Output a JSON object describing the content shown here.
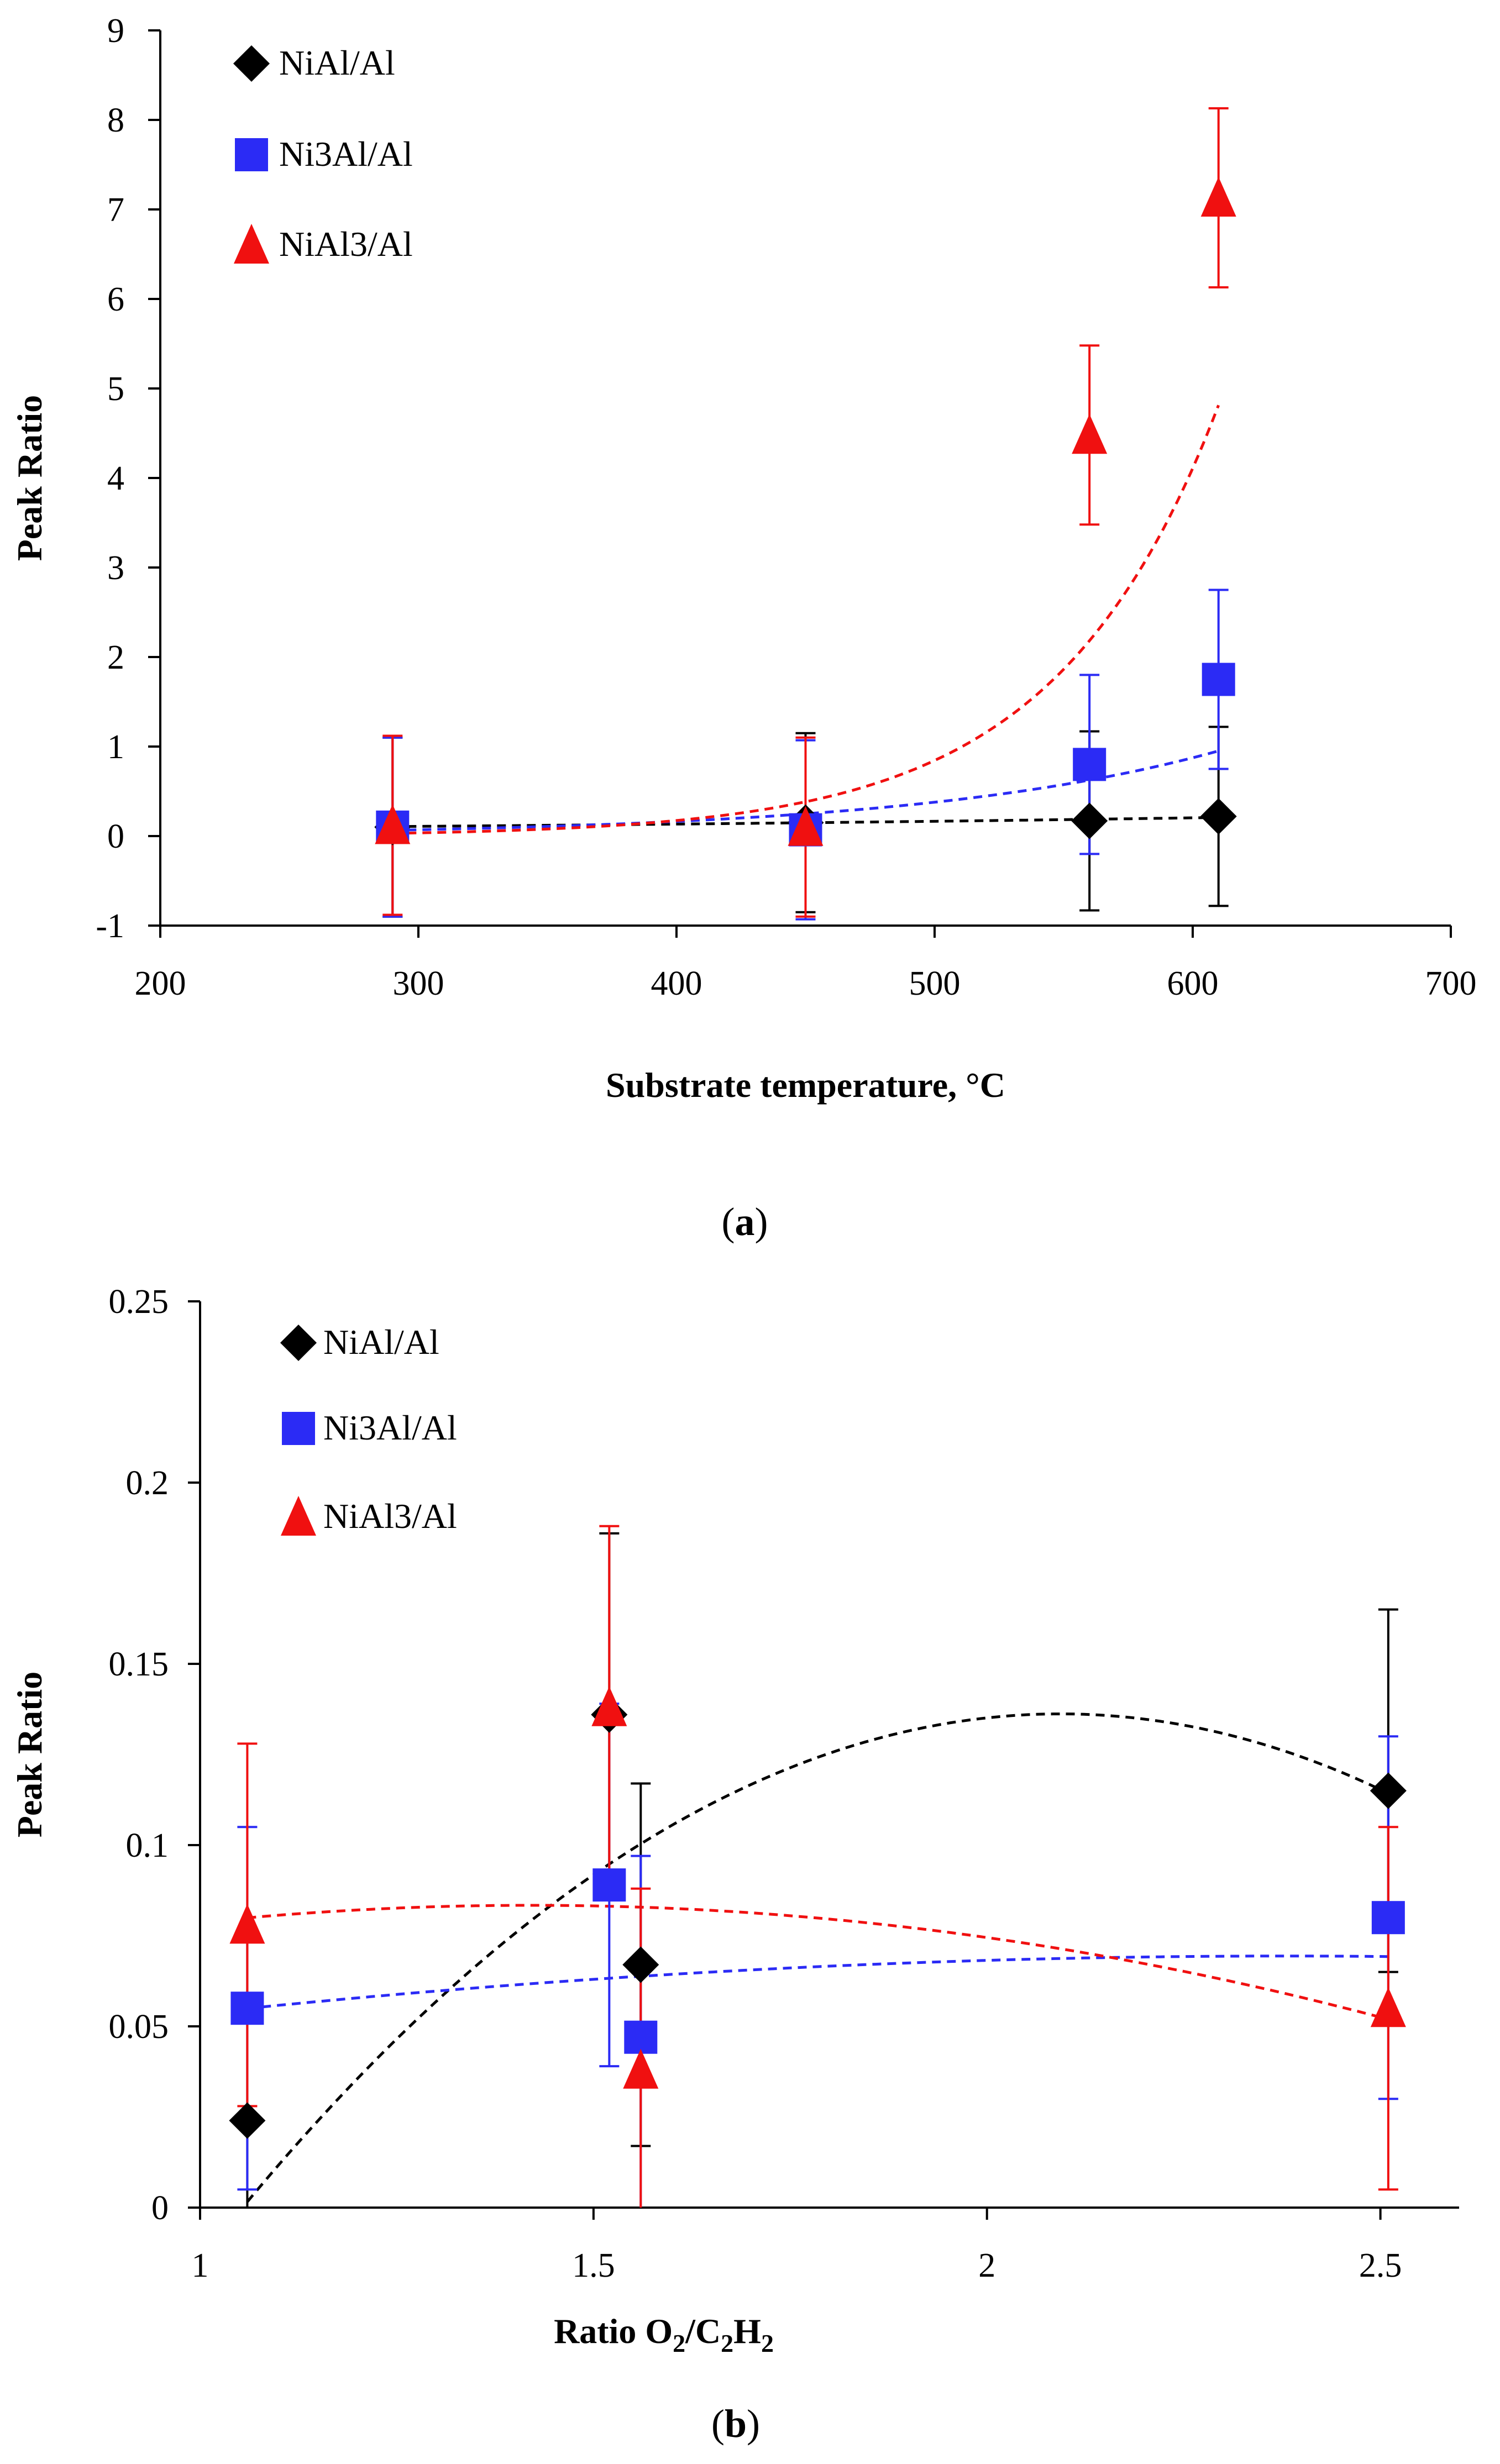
{
  "chart_data": [
    {
      "type": "scatter",
      "panel": "a",
      "caption": "a",
      "xlabel": "Substrate temperature, °C",
      "ylabel": "Peak Ratio",
      "xlim": [
        200,
        700
      ],
      "ylim": [
        -1,
        9
      ],
      "xticks": [
        "200",
        "300",
        "400",
        "500",
        "600",
        "700"
      ],
      "yticks": [
        "-1",
        "0",
        "1",
        "2",
        "3",
        "4",
        "5",
        "6",
        "7",
        "8",
        "9"
      ],
      "legend_position": "top-left",
      "grid": false,
      "series": [
        {
          "name": "NiAl/Al",
          "marker": "diamond",
          "color": "#000000",
          "x": [
            290,
            450,
            560,
            610
          ],
          "y": [
            0.1,
            0.15,
            0.17,
            0.22
          ],
          "err": [
            1.0,
            1.0,
            1.0,
            1.0
          ],
          "trend": {
            "kind": "exp",
            "a": 0.0578,
            "b": 0.0021
          }
        },
        {
          "name": "Ni3Al/Al",
          "marker": "square",
          "color": "#2b2bf5",
          "x": [
            290,
            450,
            560,
            610
          ],
          "y": [
            0.1,
            0.07,
            0.8,
            1.75
          ],
          "err": [
            1.0,
            1.0,
            1.0,
            1.0
          ],
          "trend": {
            "kind": "exp",
            "a": 0.00573,
            "b": 0.00838
          }
        },
        {
          "name": "NiAl3/Al",
          "marker": "triangle",
          "color": "#f01010",
          "x": [
            290,
            450,
            560,
            610
          ],
          "y": [
            0.12,
            0.1,
            4.48,
            7.13
          ],
          "err": [
            1.0,
            1.0,
            1.0,
            1.0
          ],
          "trend": {
            "kind": "exp",
            "a": 0.00031,
            "b": 0.01582
          }
        }
      ]
    },
    {
      "type": "scatter",
      "panel": "b",
      "caption": "b",
      "xlabel_parts": {
        "prefix": "Ratio O",
        "sub1": "2",
        "mid": "/C",
        "sub2": "2",
        "mid2": "H",
        "sub3": "2"
      },
      "ylabel": "Peak Ratio",
      "xlim": [
        1,
        2.6
      ],
      "ylim": [
        0,
        0.25
      ],
      "xticks": [
        "1",
        "1.5",
        "2",
        "2.5"
      ],
      "yticks": [
        "0",
        "0.05",
        "0.1",
        "0.15",
        "0.2",
        "0.25"
      ],
      "legend_position": "top-left",
      "grid": false,
      "series": [
        {
          "name": "NiAl/Al",
          "marker": "diamond",
          "color": "#000000",
          "x": [
            1.06,
            1.52,
            1.56,
            2.51
          ],
          "y": [
            0.024,
            0.136,
            0.067,
            0.115
          ],
          "err": [
            0.05,
            0.05,
            0.05,
            0.05
          ],
          "trend": {
            "kind": "poly2",
            "c": [
              -0.4163,
              0.5279,
              -0.1261
            ]
          }
        },
        {
          "name": "Ni3Al/Al",
          "marker": "square",
          "color": "#2b2bf5",
          "x": [
            1.06,
            1.52,
            1.56,
            2.51
          ],
          "y": [
            0.055,
            0.089,
            0.047,
            0.08
          ],
          "err": [
            0.05,
            0.05,
            0.05,
            0.05
          ],
          "trend": {
            "kind": "poly2",
            "c": [
              0.0224,
              0.0395,
              -0.0083
            ]
          }
        },
        {
          "name": "NiAl3/Al",
          "marker": "triangle",
          "color": "#f01010",
          "x": [
            1.06,
            1.52,
            1.56,
            2.51
          ],
          "y": [
            0.078,
            0.138,
            0.038,
            0.055
          ],
          "err": [
            0.05,
            0.05,
            0.05,
            0.05
          ],
          "trend": {
            "kind": "poly2",
            "c": [
              0.0299,
              0.0753,
              -0.0265
            ]
          }
        }
      ]
    }
  ]
}
